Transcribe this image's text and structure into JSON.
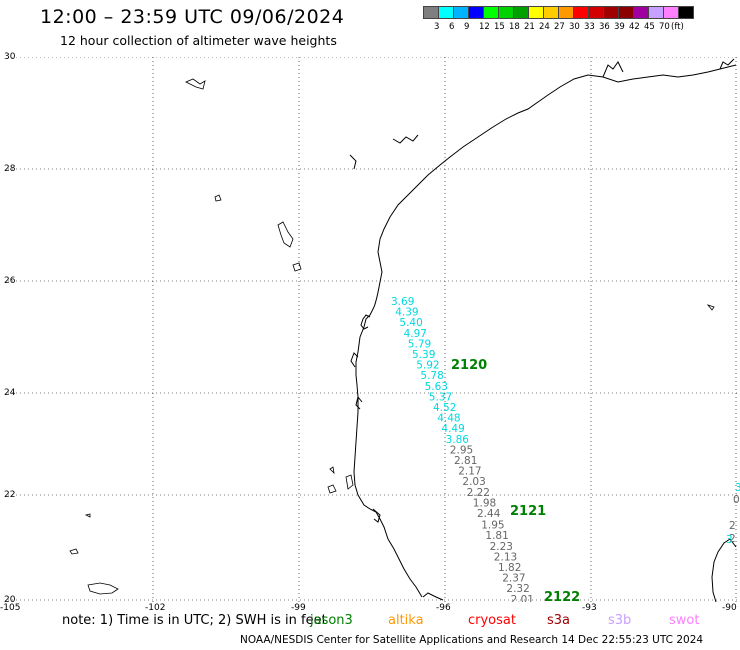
{
  "header": {
    "title": "12:00 – 23:59 UTC 09/06/2024",
    "subtitle": "12 hour collection of altimeter wave heights"
  },
  "colorbar": {
    "colors": [
      "#7f7f7f",
      "#00ffff",
      "#00b3ff",
      "#0000ff",
      "#00ff00",
      "#00d200",
      "#00a000",
      "#ffff00",
      "#ffcc00",
      "#ff9900",
      "#ff0000",
      "#d20000",
      "#a00000",
      "#8b0000",
      "#a000a0",
      "#c8a0ff",
      "#ff80ff",
      "#000000"
    ],
    "labels": [
      "3",
      "6",
      "9",
      "12",
      "15",
      "18",
      "21",
      "24",
      "27",
      "30",
      "33",
      "36",
      "39",
      "42",
      "45",
      "70",
      "(ft)"
    ]
  },
  "axes": {
    "lat_labels": [
      "30",
      "28",
      "26",
      "24",
      "22",
      "20"
    ],
    "lon_labels": [
      "-105",
      "-102",
      "-99",
      "-96",
      "-93",
      "-90"
    ]
  },
  "tracks": [
    {
      "id": "2120",
      "color": "#008000"
    },
    {
      "id": "2121",
      "color": "#008000"
    },
    {
      "id": "2122",
      "color": "#008000"
    }
  ],
  "swh_values": [
    {
      "v": "3.69",
      "c": "cyan"
    },
    {
      "v": "4.39",
      "c": "cyan"
    },
    {
      "v": "5.40",
      "c": "cyan"
    },
    {
      "v": "4.97",
      "c": "cyan"
    },
    {
      "v": "5.79",
      "c": "cyan"
    },
    {
      "v": "5.39",
      "c": "cyan"
    },
    {
      "v": "5.92",
      "c": "cyan"
    },
    {
      "v": "5.78",
      "c": "cyan"
    },
    {
      "v": "5.63",
      "c": "cyan"
    },
    {
      "v": "5.37",
      "c": "cyan"
    },
    {
      "v": "4.52",
      "c": "cyan"
    },
    {
      "v": "4.48",
      "c": "cyan"
    },
    {
      "v": "4.49",
      "c": "cyan"
    },
    {
      "v": "3.86",
      "c": "cyan"
    },
    {
      "v": "2.95",
      "c": "gray"
    },
    {
      "v": "2.81",
      "c": "gray"
    },
    {
      "v": "2.17",
      "c": "gray"
    },
    {
      "v": "2.03",
      "c": "gray"
    },
    {
      "v": "2.22",
      "c": "gray"
    },
    {
      "v": "1.98",
      "c": "gray"
    },
    {
      "v": "2.44",
      "c": "gray"
    },
    {
      "v": "1.95",
      "c": "gray"
    },
    {
      "v": "1.81",
      "c": "gray"
    },
    {
      "v": "2.23",
      "c": "gray"
    },
    {
      "v": "2.13",
      "c": "gray"
    },
    {
      "v": "1.82",
      "c": "gray"
    },
    {
      "v": "2.37",
      "c": "gray"
    },
    {
      "v": "2.32",
      "c": "gray"
    },
    {
      "v": "2.01",
      "c": "gray"
    }
  ],
  "edge_values": [
    "3",
    "0",
    "2",
    "2",
    "3"
  ],
  "note": {
    "text": "note:  1) Time is in UTC; 2) SWH is in feet",
    "satellites": [
      {
        "name": "jason3",
        "color": "#008000"
      },
      {
        "name": "altika",
        "color": "#ff9900"
      },
      {
        "name": "cryosat",
        "color": "#ff0000"
      },
      {
        "name": "s3a",
        "color": "#a00000"
      },
      {
        "name": "s3b",
        "color": "#c8a0ff"
      },
      {
        "name": "swot",
        "color": "#ff80ff"
      }
    ]
  },
  "footer": "NOAA/NESDIS Center for Satellite Applications and Research    14 Dec 22:55:23 UTC 2024"
}
